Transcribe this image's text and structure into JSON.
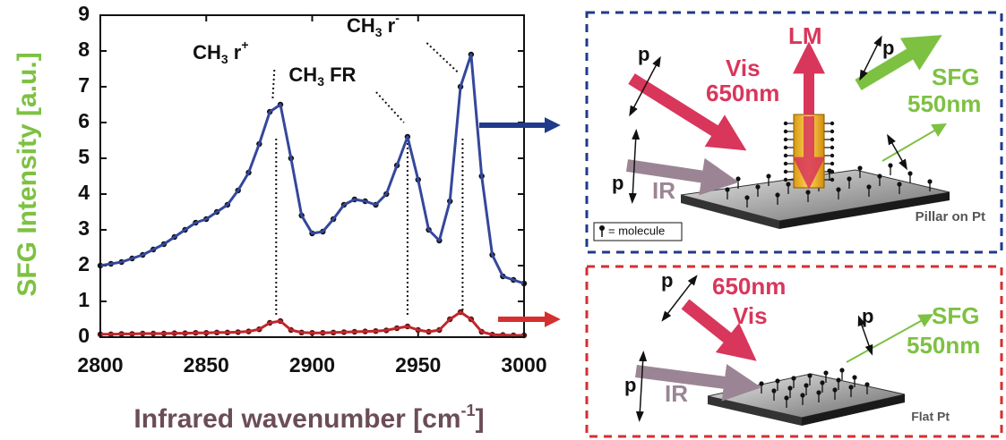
{
  "chart_data": {
    "type": "line",
    "xlabel": {
      "text": "Infrared wavenumber [cm",
      "sup": "-1",
      "end": "]"
    },
    "ylabel": "SFG Intensity [a.u.]",
    "xlabel_color": "#6b4d57",
    "ylabel_color": "#7dc142",
    "x": [
      2800,
      2805,
      2810,
      2815,
      2820,
      2825,
      2830,
      2835,
      2840,
      2845,
      2850,
      2855,
      2860,
      2865,
      2870,
      2875,
      2880,
      2885,
      2890,
      2895,
      2900,
      2905,
      2910,
      2915,
      2920,
      2925,
      2930,
      2935,
      2940,
      2945,
      2950,
      2955,
      2960,
      2965,
      2970,
      2975,
      2980,
      2985,
      2990,
      2995,
      3000
    ],
    "series": [
      {
        "color": "#34479a",
        "marker_color": "#111111",
        "values": [
          2.0,
          2.05,
          2.1,
          2.2,
          2.3,
          2.45,
          2.6,
          2.8,
          3.0,
          3.2,
          3.3,
          3.5,
          3.7,
          4.1,
          4.6,
          5.4,
          6.3,
          6.5,
          5.0,
          3.4,
          2.9,
          2.95,
          3.3,
          3.7,
          3.85,
          3.8,
          3.7,
          4.0,
          4.8,
          5.6,
          4.4,
          3.0,
          2.7,
          3.8,
          7.0,
          7.9,
          4.5,
          2.3,
          1.7,
          1.6,
          1.5
        ]
      },
      {
        "color": "#c0272d",
        "marker_color": "#5a1010",
        "values": [
          0.08,
          0.08,
          0.09,
          0.09,
          0.1,
          0.1,
          0.1,
          0.11,
          0.11,
          0.12,
          0.12,
          0.13,
          0.13,
          0.14,
          0.16,
          0.22,
          0.4,
          0.45,
          0.2,
          0.13,
          0.12,
          0.12,
          0.13,
          0.14,
          0.15,
          0.16,
          0.17,
          0.19,
          0.25,
          0.3,
          0.2,
          0.15,
          0.2,
          0.5,
          0.7,
          0.5,
          0.15,
          0.07,
          0.06,
          0.05,
          0.05
        ]
      }
    ],
    "xlim": [
      2800,
      3000
    ],
    "ylim": [
      0,
      9
    ],
    "xticks": [
      2800,
      2850,
      2900,
      2950,
      3000
    ],
    "yticks": [
      0,
      1,
      2,
      3,
      4,
      5,
      6,
      7,
      8,
      9
    ],
    "annotations": [
      {
        "main": "CH",
        "sub": "3",
        "rest": " r",
        "sup": "+",
        "x": 2883
      },
      {
        "main": "CH",
        "sub": "3",
        "rest": " FR",
        "x": 2945
      },
      {
        "main": "CH",
        "sub": "3",
        "rest": " r",
        "sup": "-",
        "x": 2971
      }
    ]
  },
  "pillar_panel": {
    "p_vis": "p",
    "vis": "Vis",
    "vis_wl": "650nm",
    "lm": "LM",
    "p_sfg": "p",
    "sfg": "SFG",
    "sfg_wl": "550nm",
    "p_ir": "p",
    "ir": "IR",
    "legend": "= molecule",
    "caption": "Pillar on Pt"
  },
  "flat_panel": {
    "p_vis": "p",
    "vis_wl": "650nm",
    "vis": "Vis",
    "p_sfg": "p",
    "sfg": "SFG",
    "sfg_wl": "550nm",
    "p_ir": "p",
    "ir": "IR",
    "caption": "Flat Pt"
  }
}
